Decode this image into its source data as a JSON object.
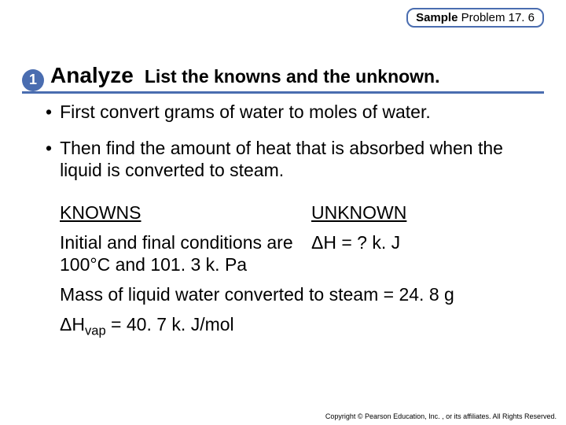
{
  "badge": {
    "bold": "Sample",
    "rest": " Problem 17. 6"
  },
  "step": {
    "num": "1",
    "title": "Analyze",
    "subtitle": "List the knowns and the unknown."
  },
  "bullets": {
    "b1": "First convert grams of water to moles of water.",
    "b2": "Then find the amount of heat that is absorbed when the liquid is converted to steam."
  },
  "knowns": {
    "heading": "KNOWNS",
    "line1": "Initial and final conditions are 100°C and 101. 3 k. Pa"
  },
  "unknown": {
    "heading": "UNKNOWN",
    "line1": "ΔH = ? k. J"
  },
  "extra": {
    "mass": "Mass of liquid water converted to steam = 24. 8 g",
    "hvap_pre": "ΔH",
    "hvap_sub": "vap",
    "hvap_post": " = 40. 7 k. J/mol"
  },
  "copyright": "Copyright © Pearson Education, Inc. , or its affiliates. All Rights Reserved."
}
